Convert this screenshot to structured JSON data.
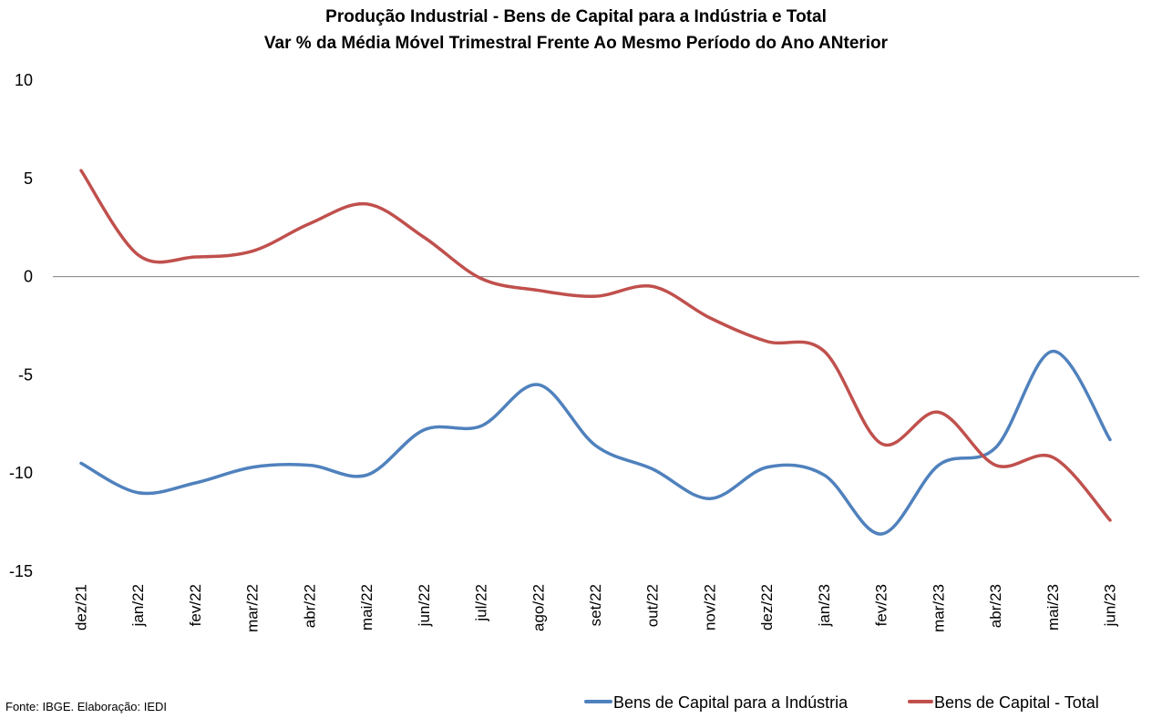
{
  "chart_data": {
    "type": "line",
    "title": "Produção Industrial - Bens de Capital para a Indústria e Total",
    "subtitle": "Var % da Média Móvel Trimestral Frente Ao Mesmo Período do Ano ANterior",
    "categories": [
      "dez/21",
      "jan/22",
      "fev/22",
      "mar/22",
      "abr/22",
      "mai/22",
      "jun/22",
      "jul/22",
      "ago/22",
      "set/22",
      "out/22",
      "nov/22",
      "dez/22",
      "jan/23",
      "fev/23",
      "mar/23",
      "abr/23",
      "mai/23",
      "jun/23"
    ],
    "series": [
      {
        "name": "Bens de Capital para a Indústria",
        "color": "#4f81bd",
        "values": [
          -9.5,
          -11.0,
          -10.5,
          -9.7,
          -9.6,
          -10.1,
          -7.8,
          -7.6,
          -5.5,
          -8.6,
          -9.8,
          -11.3,
          -9.7,
          -10.1,
          -13.1,
          -9.6,
          -8.7,
          -3.8,
          -8.3
        ]
      },
      {
        "name": "Bens de Capital - Total",
        "color": "#c0504d",
        "values": [
          5.4,
          1.1,
          1.0,
          1.3,
          2.7,
          3.7,
          2.0,
          -0.1,
          -0.7,
          -1.0,
          -0.5,
          -2.1,
          -3.3,
          -3.8,
          -8.5,
          -6.9,
          -9.6,
          -9.2,
          -12.4
        ]
      }
    ],
    "ylim": [
      -15,
      10
    ],
    "yticks": [
      "10",
      "5",
      "0",
      "-5",
      "-10",
      "-15"
    ],
    "legend_position": "bottom-right",
    "grid": false,
    "source": "Fonte: IBGE. Elaboração: IEDI"
  }
}
